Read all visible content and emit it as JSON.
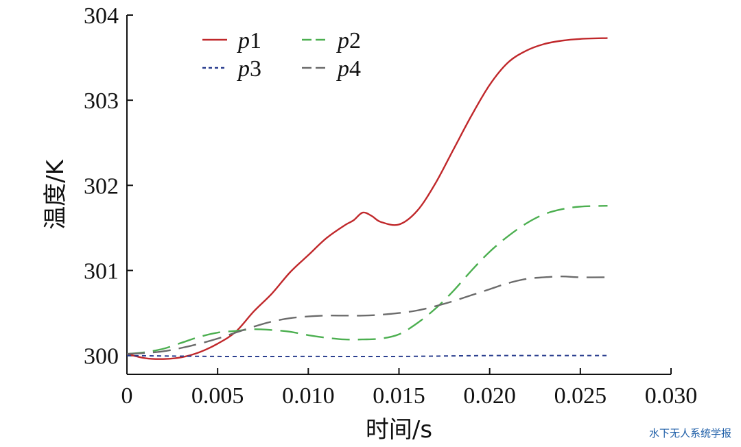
{
  "watermark": "水下无人系统学报",
  "chart_data": {
    "type": "line",
    "title": "",
    "xlabel": "时间/s",
    "ylabel": "温度/K",
    "xlim": [
      0,
      0.03
    ],
    "ylim": [
      299.78,
      304
    ],
    "xticks": [
      0,
      0.005,
      0.01,
      0.015,
      0.02,
      0.025,
      0.03
    ],
    "xtick_labels": [
      "0",
      "0.005",
      "0.010",
      "0.015",
      "0.020",
      "0.025",
      "0.030"
    ],
    "yticks": [
      300,
      301,
      302,
      303,
      304
    ],
    "ytick_labels": [
      "300",
      "301",
      "302",
      "303",
      "304"
    ],
    "grid": false,
    "legend_position": "top-left",
    "series": [
      {
        "name": "p1",
        "color": "#c0282b",
        "dash": "solid",
        "x": [
          0,
          0.001,
          0.002,
          0.003,
          0.004,
          0.005,
          0.006,
          0.007,
          0.008,
          0.009,
          0.01,
          0.011,
          0.012,
          0.0125,
          0.013,
          0.0135,
          0.014,
          0.015,
          0.016,
          0.017,
          0.018,
          0.019,
          0.02,
          0.021,
          0.022,
          0.023,
          0.024,
          0.025,
          0.0265
        ],
        "y": [
          300.02,
          299.97,
          299.96,
          299.98,
          300.04,
          300.14,
          300.28,
          300.52,
          300.73,
          300.98,
          301.18,
          301.38,
          301.53,
          301.59,
          301.68,
          301.64,
          301.57,
          301.54,
          301.7,
          302.02,
          302.42,
          302.82,
          303.18,
          303.44,
          303.58,
          303.66,
          303.7,
          303.72,
          303.73
        ]
      },
      {
        "name": "p2",
        "color": "#4caf50",
        "dash": "long-dash",
        "x": [
          0,
          0.001,
          0.002,
          0.003,
          0.004,
          0.005,
          0.006,
          0.007,
          0.008,
          0.009,
          0.01,
          0.011,
          0.012,
          0.013,
          0.014,
          0.015,
          0.016,
          0.017,
          0.018,
          0.019,
          0.02,
          0.021,
          0.022,
          0.023,
          0.024,
          0.025,
          0.0265
        ],
        "y": [
          300.02,
          300.04,
          300.08,
          300.15,
          300.22,
          300.27,
          300.29,
          300.31,
          300.3,
          300.28,
          300.24,
          300.21,
          300.19,
          300.19,
          300.2,
          300.25,
          300.38,
          300.55,
          300.76,
          301.0,
          301.22,
          301.4,
          301.55,
          301.66,
          301.72,
          301.75,
          301.76
        ]
      },
      {
        "name": "p3",
        "color": "#2b3f8f",
        "dash": "short-dash",
        "x": [
          0,
          0.005,
          0.01,
          0.015,
          0.02,
          0.025,
          0.0265
        ],
        "y": [
          300.0,
          299.99,
          299.99,
          299.99,
          300.0,
          300.0,
          300.0
        ]
      },
      {
        "name": "p4",
        "color": "#6b6b6b",
        "dash": "long-dash",
        "x": [
          0,
          0.001,
          0.002,
          0.003,
          0.004,
          0.005,
          0.006,
          0.007,
          0.008,
          0.009,
          0.01,
          0.011,
          0.012,
          0.013,
          0.014,
          0.015,
          0.016,
          0.017,
          0.018,
          0.019,
          0.02,
          0.021,
          0.022,
          0.023,
          0.024,
          0.025,
          0.0265
        ],
        "y": [
          300.02,
          300.03,
          300.05,
          300.09,
          300.14,
          300.2,
          300.27,
          300.34,
          300.4,
          300.44,
          300.46,
          300.47,
          300.47,
          300.47,
          300.48,
          300.5,
          300.53,
          300.58,
          300.64,
          300.71,
          300.78,
          300.85,
          300.9,
          300.92,
          300.93,
          300.92,
          300.92
        ]
      }
    ]
  }
}
